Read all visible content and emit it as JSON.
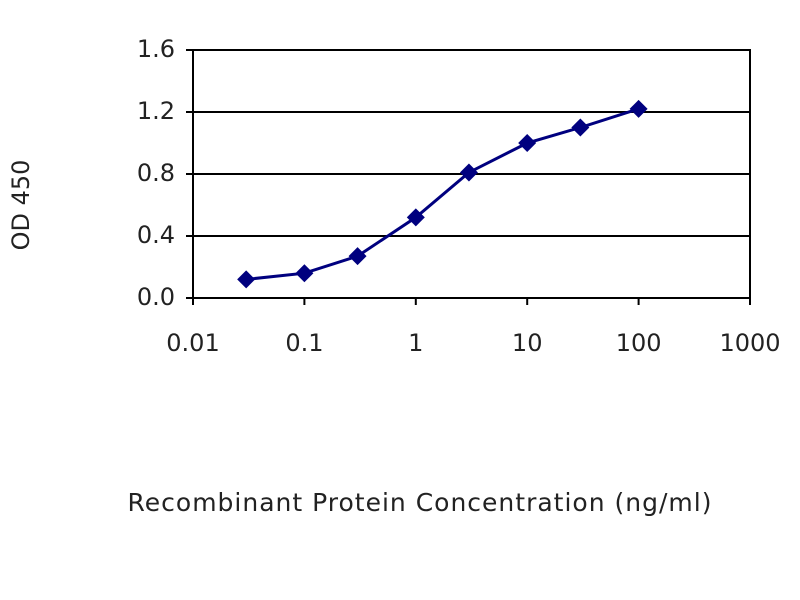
{
  "chart_data": {
    "type": "line",
    "xlabel": "Recombinant Protein Concentration (ng/ml)",
    "ylabel": "OD 450",
    "x": [
      0.03,
      0.1,
      0.3,
      1,
      3,
      10,
      30,
      100
    ],
    "series": [
      {
        "name": "OD 450",
        "color": "#00007f",
        "values": [
          0.12,
          0.16,
          0.27,
          0.52,
          0.81,
          1.0,
          1.1,
          1.22
        ]
      }
    ],
    "xscale": "log",
    "xlim": [
      0.01,
      1000
    ],
    "xticks": [
      0.01,
      0.1,
      1,
      10,
      100,
      1000
    ],
    "ylim": [
      0,
      1.6
    ],
    "yticks": [
      {
        "value": 0,
        "label": "0.0"
      },
      0.4,
      0.8,
      1.2,
      1.6
    ],
    "grid": true
  }
}
